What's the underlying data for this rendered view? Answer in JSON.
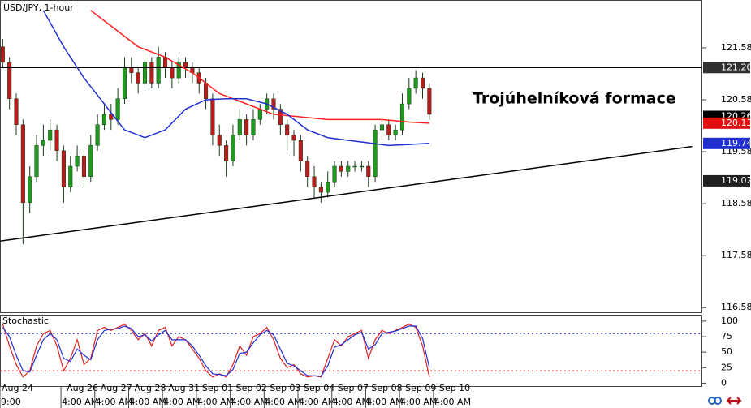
{
  "chart_data": [
    {
      "type": "candlestick",
      "title": "USD/JPY, 1-hour",
      "annotation": "Trojúhelníková formace",
      "up_color": "#1f9a1f",
      "down_color": "#b81c1c",
      "open": [
        121.6,
        121.3,
        120.6,
        120.1,
        118.6,
        119.1,
        119.7,
        119.8,
        120.0,
        119.6,
        118.9,
        119.3,
        119.5,
        119.1,
        119.7,
        120.1,
        120.3,
        120.2,
        120.6,
        121.2,
        121.1,
        120.9,
        121.3,
        120.9,
        121.4,
        121.2,
        121.0,
        121.3,
        121.2,
        121.1,
        120.9,
        120.6,
        119.9,
        119.7,
        119.4,
        119.9,
        120.2,
        119.9,
        120.2,
        120.4,
        120.6,
        120.4,
        120.1,
        119.9,
        119.8,
        119.4,
        119.1,
        118.9,
        118.8,
        119.0,
        119.3,
        119.2,
        119.3,
        119.3,
        119.3,
        119.1,
        120.0,
        120.1,
        119.9,
        120.0,
        120.5,
        120.8,
        121.0,
        120.8
      ],
      "high": [
        121.75,
        121.4,
        120.7,
        120.2,
        119.3,
        119.9,
        120.1,
        120.2,
        120.1,
        119.7,
        119.5,
        119.7,
        119.6,
        119.9,
        120.3,
        120.5,
        120.5,
        120.8,
        121.4,
        121.4,
        121.2,
        121.5,
        121.4,
        121.6,
        121.5,
        121.3,
        121.4,
        121.4,
        121.3,
        121.2,
        121.0,
        120.7,
        120.1,
        119.8,
        120.1,
        120.4,
        120.3,
        120.4,
        120.5,
        120.7,
        120.7,
        120.5,
        120.2,
        120.0,
        119.9,
        119.5,
        119.3,
        119.0,
        119.2,
        119.4,
        119.4,
        119.4,
        119.4,
        119.4,
        119.4,
        120.1,
        120.2,
        120.2,
        120.1,
        120.7,
        121.0,
        121.15,
        121.1,
        120.9
      ],
      "low": [
        121.2,
        120.4,
        119.9,
        117.8,
        118.4,
        119.0,
        119.5,
        119.6,
        119.4,
        118.6,
        118.8,
        119.2,
        118.9,
        119.0,
        119.6,
        120.0,
        120.0,
        120.1,
        120.5,
        120.9,
        120.7,
        120.8,
        120.8,
        120.8,
        121.0,
        120.8,
        120.9,
        121.0,
        120.9,
        120.7,
        120.4,
        119.7,
        119.5,
        119.1,
        119.3,
        119.8,
        119.7,
        119.8,
        120.1,
        120.3,
        120.2,
        119.9,
        119.6,
        119.5,
        119.2,
        118.9,
        118.7,
        118.6,
        118.7,
        118.9,
        119.1,
        119.1,
        119.2,
        119.2,
        118.9,
        119.0,
        119.8,
        119.8,
        119.8,
        119.9,
        120.4,
        120.7,
        120.6,
        120.2
      ],
      "close": [
        121.3,
        120.6,
        120.1,
        118.6,
        119.1,
        119.7,
        119.8,
        120.0,
        119.6,
        118.9,
        119.3,
        119.5,
        119.1,
        119.7,
        120.1,
        120.3,
        120.2,
        120.6,
        121.2,
        121.1,
        120.9,
        121.3,
        120.9,
        121.4,
        121.2,
        121.0,
        121.3,
        121.2,
        121.1,
        120.9,
        120.6,
        119.9,
        119.7,
        119.4,
        119.9,
        120.2,
        119.9,
        120.2,
        120.4,
        120.6,
        120.4,
        120.1,
        119.9,
        119.8,
        119.4,
        119.1,
        118.9,
        118.8,
        119.0,
        119.3,
        119.2,
        119.3,
        119.3,
        119.3,
        119.1,
        120.0,
        120.1,
        119.9,
        120.0,
        120.5,
        120.8,
        121.0,
        120.8,
        120.3
      ],
      "series": [
        {
          "color": "#ff2020",
          "x": [
            13,
            16,
            20,
            24,
            28,
            32,
            36,
            40,
            44,
            48,
            52,
            56,
            60,
            63
          ],
          "values": [
            122.3,
            122.0,
            121.6,
            121.4,
            121.1,
            120.7,
            120.5,
            120.3,
            120.25,
            120.2,
            120.2,
            120.2,
            120.15,
            120.13
          ]
        },
        {
          "color": "#2030d0",
          "x": [
            6,
            9,
            12,
            15,
            18,
            21,
            24,
            27,
            30,
            33,
            36,
            39,
            42,
            45,
            48,
            51,
            54,
            57,
            60,
            63
          ],
          "values": [
            122.3,
            121.6,
            121.0,
            120.5,
            120.0,
            119.85,
            120.0,
            120.4,
            120.58,
            120.6,
            120.6,
            120.5,
            120.3,
            120.0,
            119.85,
            119.8,
            119.75,
            119.7,
            119.72,
            119.74
          ]
        }
      ],
      "trendlines": [
        {
          "x": [
            -0.4,
            103.3
          ],
          "y": [
            121.2,
            121.2
          ]
        },
        {
          "x": [
            -0.4,
            101.8
          ],
          "y": [
            117.86,
            119.68
          ]
        }
      ],
      "price_labels": [
        {
          "value": 121.2,
          "label": "121.20",
          "color": "#303030"
        },
        {
          "value": 120.26,
          "label": "120.26",
          "color": "#000000"
        },
        {
          "value": 120.13,
          "label": "120.13",
          "color": "#e01010"
        },
        {
          "value": 119.74,
          "label": "119.74",
          "color": "#2030d0"
        },
        {
          "value": 119.02,
          "label": "119.02",
          "color": "#202020"
        }
      ],
      "xlim": [
        -0.4,
        103.3
      ],
      "ylim": [
        116.49,
        122.5
      ],
      "yticks": [
        121.58,
        120.58,
        119.58,
        118.58,
        117.58,
        116.58
      ],
      "xticks": [
        {
          "value": -0.4,
          "label": "Aug 24"
        },
        {
          "value": 8.6,
          "label": "Aug 26"
        },
        {
          "value": 13.6,
          "label": "Aug 27"
        },
        {
          "value": 18.6,
          "label": "Aug 28"
        },
        {
          "value": 23.6,
          "label": "Aug 31"
        },
        {
          "value": 28.6,
          "label": "Sep 01"
        },
        {
          "value": 33.6,
          "label": "Sep 02"
        },
        {
          "value": 38.6,
          "label": "Sep 03"
        },
        {
          "value": 43.6,
          "label": "Sep 04"
        },
        {
          "value": 48.6,
          "label": "Sep 07"
        },
        {
          "value": 53.6,
          "label": "Sep 08"
        },
        {
          "value": 58.6,
          "label": "Sep 09"
        },
        {
          "value": 63.6,
          "label": "Sep 10"
        }
      ],
      "time_labels": [
        "9:00",
        "4:00 AM",
        "4:00 AM",
        "4:00 AM",
        "4:00 AM",
        "4:00 AM",
        "4:00 AM",
        "4:00 AM",
        "4:00 AM",
        "4:00 AM",
        "4:00 AM",
        "4:00 AM",
        "4:00 AM"
      ]
    },
    {
      "type": "stochastic",
      "title": "Stochastic",
      "series": [
        {
          "color": "#e02020",
          "values": [
            95,
            60,
            30,
            10,
            20,
            60,
            80,
            85,
            60,
            20,
            40,
            70,
            30,
            40,
            85,
            90,
            85,
            90,
            95,
            85,
            70,
            80,
            60,
            85,
            90,
            60,
            75,
            70,
            55,
            40,
            20,
            10,
            15,
            10,
            30,
            60,
            45,
            75,
            80,
            90,
            70,
            40,
            25,
            30,
            15,
            10,
            12,
            10,
            40,
            70,
            60,
            75,
            80,
            85,
            40,
            70,
            85,
            80,
            85,
            90,
            95,
            90,
            60,
            10
          ]
        },
        {
          "color": "#2030d0",
          "values": [
            90,
            75,
            45,
            20,
            18,
            45,
            70,
            80,
            70,
            40,
            35,
            55,
            45,
            38,
            70,
            85,
            87,
            88,
            92,
            88,
            75,
            78,
            68,
            78,
            85,
            70,
            70,
            70,
            60,
            45,
            28,
            15,
            14,
            12,
            22,
            48,
            50,
            65,
            78,
            85,
            78,
            55,
            32,
            28,
            20,
            12,
            12,
            11,
            28,
            58,
            62,
            70,
            78,
            82,
            55,
            62,
            80,
            82,
            84,
            88,
            92,
            92,
            72,
            25
          ]
        }
      ],
      "levels": [
        {
          "value": 80,
          "color": "#2030d0"
        },
        {
          "value": 20,
          "color": "#e02020"
        }
      ],
      "xlim": [
        -0.4,
        103.3
      ],
      "ylim": [
        -6,
        109
      ],
      "yticks": [
        100,
        75,
        50,
        25,
        0
      ]
    }
  ]
}
